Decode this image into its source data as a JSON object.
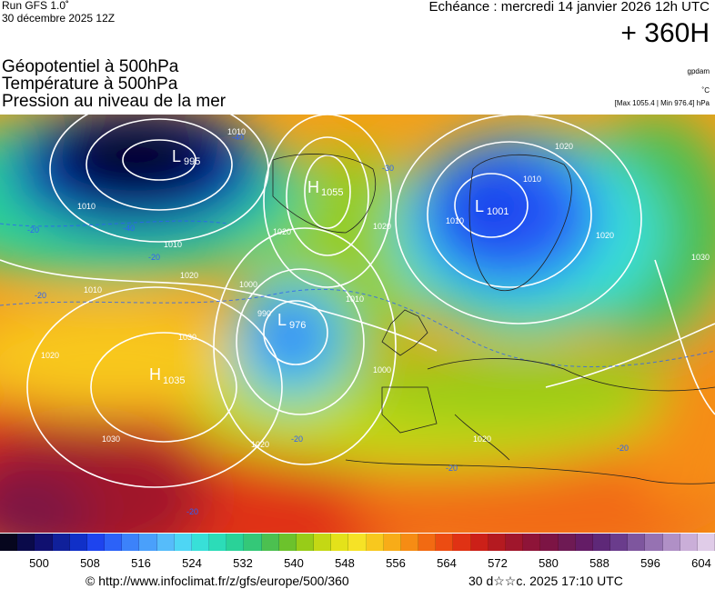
{
  "header": {
    "run": "Run GFS 1.0˚",
    "run_date": "30 décembre 2025 12Z",
    "echeance": "Echéance : mercredi 14 janvier 2026 12h UTC",
    "horizon": "+ 360H"
  },
  "params": {
    "line1": "Géopotentiel à 500hPa",
    "line2": "Température à 500hPa",
    "line3": "Pression au niveau de la mer",
    "unit1": "gpdam",
    "unit2": "˚C",
    "unit3": "[Max 1055.4 | Min 976.4] hPa"
  },
  "map": {
    "pressure_centers": [
      {
        "type": "L",
        "value": "995"
      },
      {
        "type": "H",
        "value": "1055"
      },
      {
        "type": "L",
        "value": "1001"
      },
      {
        "type": "L",
        "value": "976"
      },
      {
        "type": "H",
        "value": "1035"
      }
    ],
    "isobar_labels": [
      "1010",
      "1010",
      "1010",
      "1020",
      "1020",
      "1020",
      "1010",
      "1020",
      "1010",
      "1000",
      "990",
      "1010",
      "1000",
      "1020",
      "1030",
      "1020",
      "1030",
      "1030",
      "1020",
      "1020",
      "1010"
    ],
    "temp_labels": [
      "-20",
      "-40",
      "-40",
      "-20",
      "-20",
      "-20",
      "-30",
      "-20",
      "-20",
      "-20"
    ]
  },
  "colorbar": {
    "colors": [
      "#06061e",
      "#0a0a4a",
      "#101070",
      "#10209a",
      "#1030c8",
      "#1e44ee",
      "#2c62f8",
      "#3c82fa",
      "#4aa0fb",
      "#56bcfa",
      "#4ed6f4",
      "#38e0d8",
      "#2cdcb8",
      "#2ad298",
      "#34c878",
      "#4cc050",
      "#6cc22c",
      "#98cc18",
      "#c4d814",
      "#e4e21a",
      "#f6e226",
      "#f8c81e",
      "#f8ac18",
      "#f68c14",
      "#f26a12",
      "#ec4c12",
      "#e03214",
      "#cc2018",
      "#b41a20",
      "#a0162c",
      "#8e1438",
      "#7c1444",
      "#6e1a54",
      "#641c66",
      "#5e2878",
      "#6a3c8c",
      "#7e569e",
      "#9672b2",
      "#b090c6",
      "#caaed8",
      "#e0cce8"
    ],
    "ticks": [
      "500",
      "508",
      "516",
      "524",
      "532",
      "540",
      "548",
      "556",
      "564",
      "572",
      "580",
      "588",
      "596",
      "604"
    ]
  },
  "footer": {
    "url": "© http://www.infoclimat.fr/z/gfs/europe/500/360",
    "generated": "30 d☆☆c. 2025 17:10 UTC"
  }
}
